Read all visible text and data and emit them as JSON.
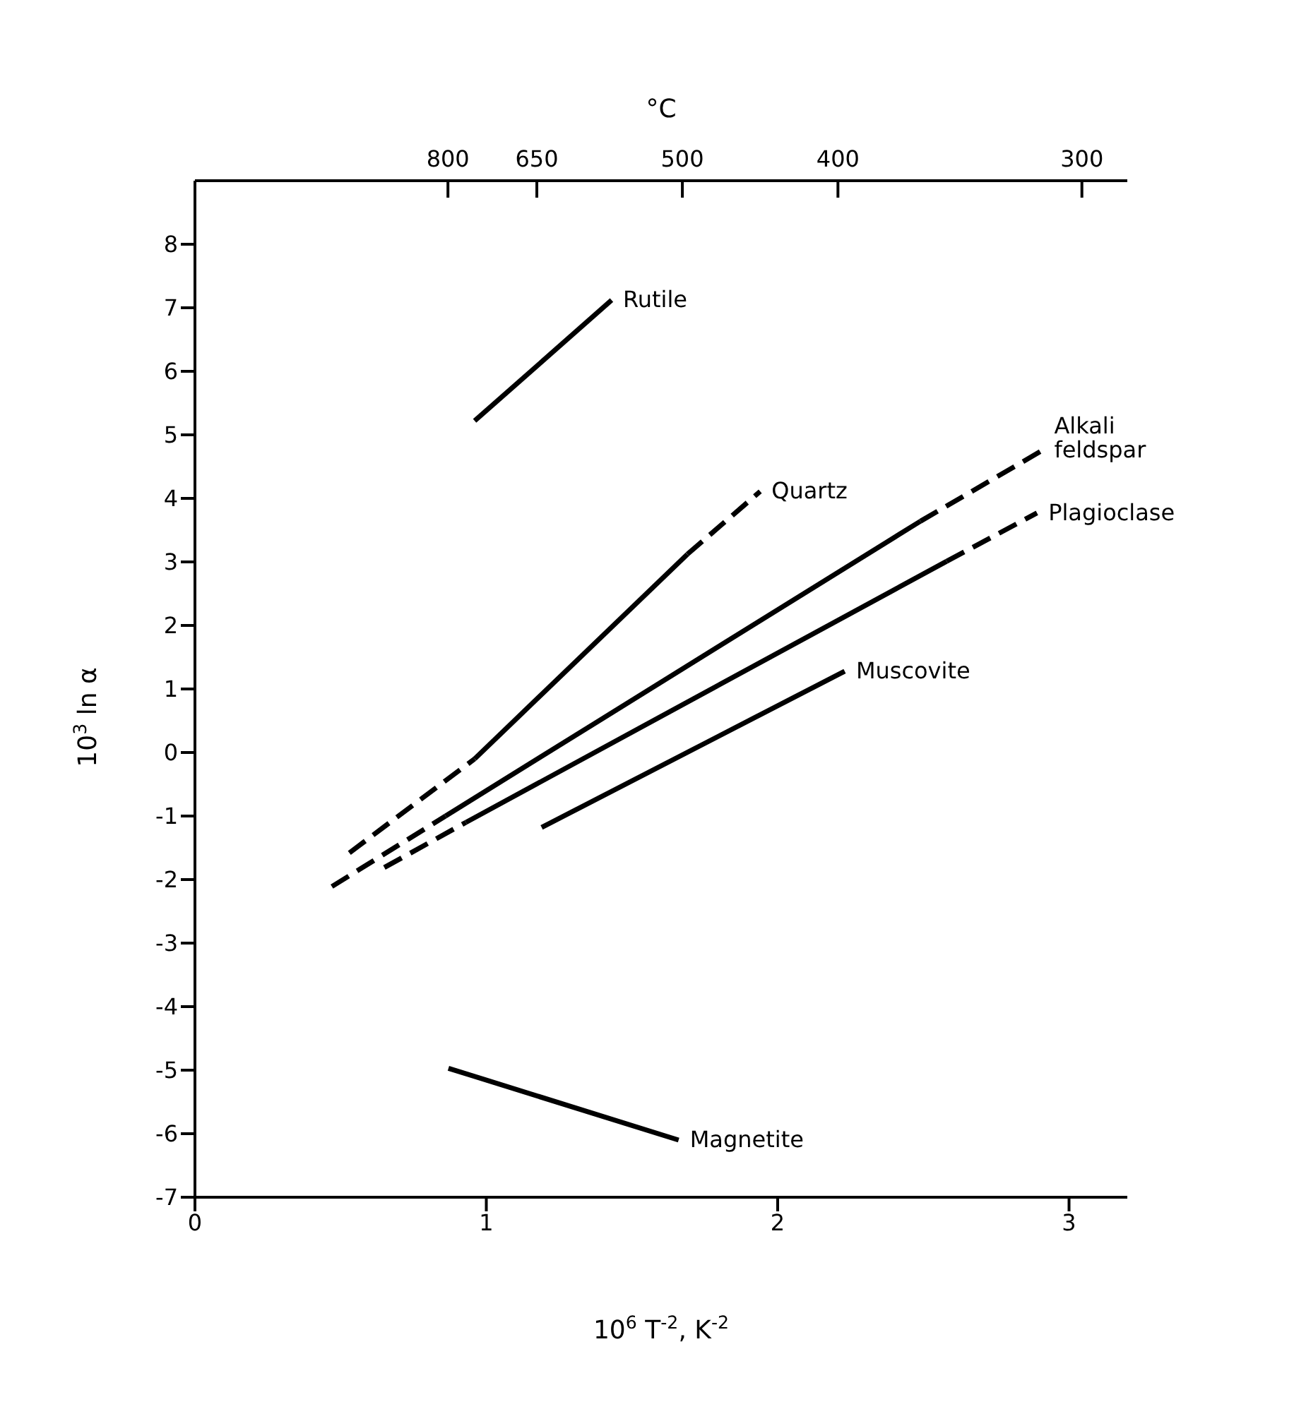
{
  "chart_data": {
    "type": "line",
    "xlabel": "10$^{6}$ T$^{-2}$, K$^{-2}$",
    "ylabel": "10$^{3}$ ln α",
    "x2label": "°C",
    "xlim": [
      0,
      3.2
    ],
    "xticks": [
      0,
      1,
      2,
      3
    ],
    "annotations": [
      "800",
      "650",
      "500",
      "400",
      "300"
    ],
    "ylim": [
      -7,
      9
    ],
    "yticks": [
      -7,
      -6,
      -5,
      -4,
      -3,
      -2,
      -1,
      0,
      1,
      2,
      3,
      4,
      5,
      6,
      7,
      8
    ],
    "grid": false,
    "legend": false,
    "marker": "none",
    "series": [
      {
        "name": "Rutile",
        "color": "#000000",
        "x": [
          0.96,
          1.43
        ],
        "values": [
          5.22,
          7.12
        ],
        "line_style": "solid"
      },
      {
        "color": "#000000",
        "x": [
          0.53,
          0.96
        ],
        "values": [
          -1.58,
          -0.1
        ],
        "line_style": "dashed"
      },
      {
        "color": "#000000",
        "x": [
          0.96,
          1.69
        ],
        "values": [
          -0.1,
          3.12
        ],
        "line_style": "solid"
      },
      {
        "name": "Quartz",
        "color": "#000000",
        "x": [
          1.69,
          1.94
        ],
        "values": [
          3.12,
          4.11
        ],
        "line_style": "dashed"
      },
      {
        "color": "#000000",
        "x": [
          0.47,
          0.86
        ],
        "values": [
          -2.11,
          -1.0
        ],
        "line_style": "dashed"
      },
      {
        "color": "#000000",
        "x": [
          0.86,
          2.49
        ],
        "values": [
          -1.0,
          3.64
        ],
        "line_style": "solid"
      },
      {
        "name": "Alkali feldspar",
        "color": "#000000",
        "x": [
          2.49,
          2.91
        ],
        "values": [
          3.64,
          4.76
        ],
        "line_style": "dashed"
      },
      {
        "color": "#000000",
        "x": [
          0.65,
          0.93
        ],
        "values": [
          -1.81,
          -1.1
        ],
        "line_style": "dashed"
      },
      {
        "color": "#000000",
        "x": [
          0.93,
          2.58
        ],
        "values": [
          -1.1,
          3.01
        ],
        "line_style": "solid"
      },
      {
        "name": "Plagioclase",
        "color": "#000000",
        "x": [
          2.58,
          2.89
        ],
        "values": [
          3.01,
          3.77
        ],
        "line_style": "dashed"
      },
      {
        "name": "Muscovite",
        "color": "#000000",
        "x": [
          1.19,
          2.23
        ],
        "values": [
          -1.18,
          1.28
        ],
        "line_style": "solid"
      },
      {
        "name": "Magnetite",
        "color": "#000000",
        "x": [
          0.87,
          1.66
        ],
        "values": [
          -4.97,
          -6.1
        ],
        "line_style": "solid"
      }
    ]
  }
}
